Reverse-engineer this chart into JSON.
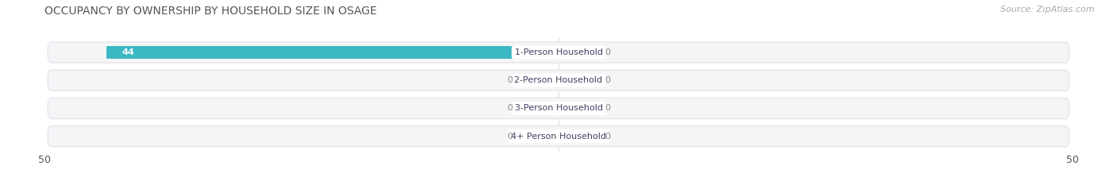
{
  "title": "OCCUPANCY BY OWNERSHIP BY HOUSEHOLD SIZE IN OSAGE",
  "source": "Source: ZipAtlas.com",
  "categories": [
    "1-Person Household",
    "2-Person Household",
    "3-Person Household",
    "4+ Person Household"
  ],
  "owner_values": [
    44,
    0,
    0,
    0
  ],
  "renter_values": [
    0,
    0,
    0,
    0
  ],
  "owner_color": "#3bb8c3",
  "renter_color": "#f4a0b5",
  "xlim": 50,
  "bg_bar": "#e8e8ee",
  "bg_bar_inner": "#f5f5f8",
  "bg_figure": "#ffffff",
  "title_fontsize": 10,
  "source_fontsize": 8,
  "tick_fontsize": 9,
  "legend_fontsize": 9,
  "bar_label_fontsize": 8,
  "category_fontsize": 8,
  "stub_size": 3.5
}
